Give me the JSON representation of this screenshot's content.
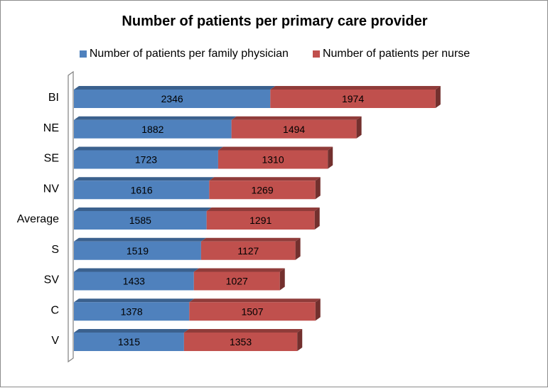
{
  "chart_data": {
    "type": "bar",
    "orientation": "horizontal",
    "stacked": true,
    "title": "Number of patients per primary care provider",
    "categories": [
      "BI",
      "NE",
      "SE",
      "NV",
      "Average",
      "S",
      "SV",
      "C",
      "V"
    ],
    "series": [
      {
        "name": "Number of patients per family physician",
        "color": "#4f81bd",
        "values": [
          2346,
          1882,
          1723,
          1616,
          1585,
          1519,
          1433,
          1378,
          1315
        ]
      },
      {
        "name": "Number of patients per nurse",
        "color": "#c0504d",
        "values": [
          1974,
          1494,
          1310,
          1269,
          1291,
          1127,
          1027,
          1507,
          1353
        ]
      }
    ],
    "xlim": [
      0,
      4500
    ],
    "grid": false,
    "legend_position": "top",
    "style": "3d-bars"
  }
}
